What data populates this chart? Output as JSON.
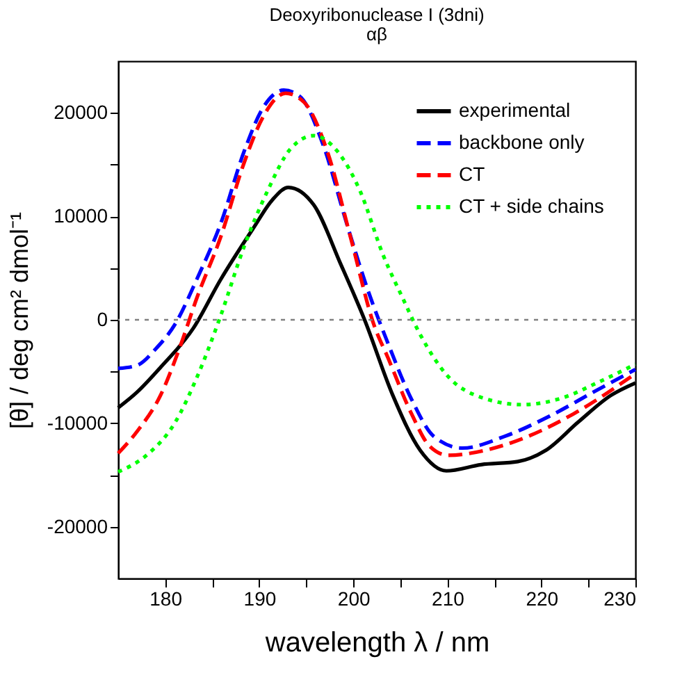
{
  "chart_data": {
    "type": "line",
    "title": "Deoxyribonuclease I (3dni)",
    "subtitle": "αβ",
    "xlabel": "wavelength λ / nm",
    "ylabel": "[θ] / deg cm² dmol⁻¹",
    "xlim": [
      175,
      230
    ],
    "xticks": [
      180,
      {
        "value": 185,
        "label": null
      },
      190,
      {
        "value": 195,
        "label": null
      },
      200,
      {
        "value": 205,
        "label": null
      },
      210,
      {
        "value": 215,
        "label": null
      },
      220,
      {
        "value": 225,
        "label": null
      },
      230
    ],
    "ylim": [
      -25000,
      25000
    ],
    "yticks": [
      -20000,
      {
        "value": -15000,
        "label": null
      },
      -10000,
      {
        "value": -5000,
        "label": null
      },
      0,
      {
        "value": 5000,
        "label": null
      },
      10000,
      {
        "value": 15000,
        "label": null
      },
      20000
    ],
    "grid": false,
    "legend": "top right",
    "marker": "none",
    "ref_lines": [
      {
        "axis": "y",
        "value": 0,
        "color": "#808080",
        "line_style": "dotted"
      }
    ],
    "series": [
      {
        "name": "experimental",
        "color": "#000000",
        "line_style": "solid",
        "x": [
          175,
          177,
          179.5,
          183,
          185.9,
          189.4,
          191.4,
          193.1,
          195.8,
          198.7,
          201.2,
          204.2,
          207.1,
          209.9,
          213.6,
          217.5,
          220.5,
          223.9,
          227.4,
          230
        ],
        "values": [
          -8500,
          -7000,
          -4600,
          -800,
          3900,
          8900,
          11600,
          12800,
          11100,
          5300,
          0,
          -7300,
          -12600,
          -14600,
          -14000,
          -13700,
          -12600,
          -9900,
          -7300,
          -6100
        ]
      },
      {
        "name": "backbone only",
        "color": "#0000ff",
        "line_style": "dashed",
        "x": [
          175,
          177,
          179,
          181,
          183.4,
          185.9,
          188.4,
          190.4,
          192.6,
          194.3,
          196.8,
          199.3,
          201.5,
          203.7,
          206.2,
          208.6,
          211.6,
          216,
          220.9,
          225.9,
          230
        ],
        "values": [
          -4700,
          -4400,
          -2800,
          -500,
          4000,
          9300,
          16300,
          20500,
          22200,
          21600,
          16900,
          9300,
          3000,
          -2300,
          -7700,
          -11300,
          -12400,
          -11300,
          -9300,
          -6800,
          -4800
        ]
      },
      {
        "name": "CT",
        "color": "#ff0000",
        "line_style": "dashed",
        "x": [
          175,
          177,
          179.5,
          181.5,
          183.4,
          185.9,
          188.4,
          190.4,
          192.8,
          194.8,
          197.3,
          199.7,
          202.2,
          203.7,
          206.2,
          208.1,
          210.1,
          214.1,
          218.5,
          223.4,
          230
        ],
        "values": [
          -12900,
          -10800,
          -7300,
          -2800,
          2200,
          8000,
          15200,
          19600,
          21900,
          21000,
          16100,
          8000,
          -500,
          -3700,
          -9100,
          -12200,
          -13100,
          -12600,
          -11300,
          -9100,
          -5200
        ]
      },
      {
        "name": "CT + side chains",
        "color": "#00ff00",
        "line_style": "dotted",
        "x": [
          175,
          178,
          181,
          183.4,
          185.9,
          188.4,
          190.9,
          193.3,
          195.8,
          198.3,
          200.7,
          203.2,
          205.2,
          207.1,
          210.1,
          213.6,
          218,
          222.4,
          225.9,
          230
        ],
        "values": [
          -14700,
          -13100,
          -10000,
          -5500,
          400,
          7100,
          12500,
          16500,
          17800,
          16300,
          12500,
          6200,
          2200,
          -1400,
          -5500,
          -7500,
          -8200,
          -7500,
          -6100,
          -4300
        ]
      }
    ]
  }
}
